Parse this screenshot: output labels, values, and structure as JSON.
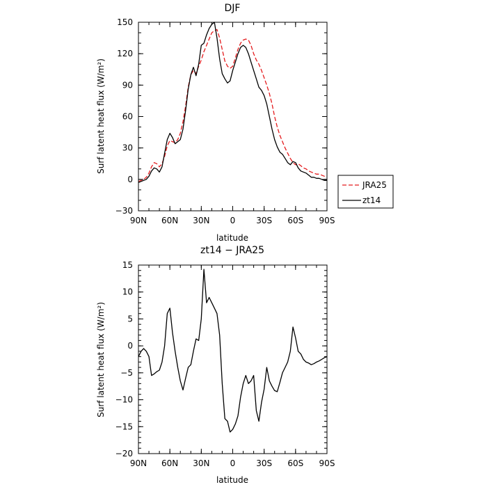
{
  "chart_data": [
    {
      "type": "line",
      "title": "DJF",
      "xlabel": "latitude",
      "ylabel": "Surf latent heat flux (W/m²)",
      "xlim": [
        90,
        -90
      ],
      "ylim": [
        -30,
        150
      ],
      "xticks": [
        90,
        60,
        30,
        0,
        -30,
        -60,
        -90
      ],
      "xtick_labels": [
        "90N",
        "60N",
        "30N",
        "0",
        "30S",
        "60S",
        "90S"
      ],
      "yticks": [
        -30,
        0,
        30,
        60,
        90,
        120,
        150
      ],
      "ytick_labels": [
        "−30",
        "0",
        "30",
        "60",
        "90",
        "120",
        "150"
      ],
      "legend_position": "right",
      "series": [
        {
          "name": "JRA25",
          "color": "#e41a1c",
          "dash": "dashed",
          "x": [
            90,
            87.5,
            85,
            82.5,
            80,
            77.5,
            75,
            72.5,
            70,
            67.5,
            65,
            62.5,
            60,
            57.5,
            55,
            52.5,
            50,
            47.5,
            45,
            42.5,
            40,
            37.5,
            35,
            32.5,
            30,
            27.5,
            25,
            22.5,
            20,
            17.5,
            15,
            12.5,
            10,
            7.5,
            5,
            2.5,
            0,
            -2.5,
            -5,
            -7.5,
            -10,
            -12.5,
            -15,
            -17.5,
            -20,
            -22.5,
            -25,
            -27.5,
            -30,
            -32.5,
            -35,
            -37.5,
            -40,
            -42.5,
            -45,
            -47.5,
            -50,
            -52.5,
            -55,
            -57.5,
            -60,
            -62.5,
            -65,
            -67.5,
            -70,
            -72.5,
            -75,
            -77.5,
            -80,
            -82.5,
            -85,
            -87.5,
            -90
          ],
          "values": [
            -2,
            -1,
            0,
            2,
            6,
            12,
            16,
            15,
            12,
            15,
            22,
            32,
            37,
            36,
            35,
            38,
            44,
            55,
            70,
            88,
            100,
            104,
            101,
            108,
            114,
            122,
            128,
            134,
            140,
            142,
            143,
            135,
            124,
            113,
            108,
            106,
            108,
            116,
            124,
            130,
            133,
            134,
            133,
            128,
            120,
            114,
            110,
            104,
            97,
            90,
            82,
            72,
            60,
            50,
            42,
            36,
            30,
            25,
            20,
            16,
            14,
            15,
            13,
            11,
            10,
            8,
            7,
            6,
            5,
            5,
            4,
            3,
            2
          ]
        },
        {
          "name": "zt14",
          "color": "#000000",
          "dash": "solid",
          "x": [
            90,
            87.5,
            85,
            82.5,
            80,
            77.5,
            75,
            72.5,
            70,
            67.5,
            65,
            62.5,
            60,
            57.5,
            55,
            52.5,
            50,
            47.5,
            45,
            42.5,
            40,
            37.5,
            35,
            32.5,
            30,
            27.5,
            25,
            22.5,
            20,
            17.5,
            15,
            12.5,
            10,
            7.5,
            5,
            2.5,
            0,
            -2.5,
            -5,
            -7.5,
            -10,
            -12.5,
            -15,
            -17.5,
            -20,
            -22.5,
            -25,
            -27.5,
            -30,
            -32.5,
            -35,
            -37.5,
            -40,
            -42.5,
            -45,
            -47.5,
            -50,
            -52.5,
            -55,
            -57.5,
            -60,
            -62.5,
            -65,
            -67.5,
            -70,
            -72.5,
            -75,
            -77.5,
            -80,
            -82.5,
            -85,
            -87.5,
            -90
          ],
          "values": [
            -3,
            -2,
            -1,
            0,
            3,
            8,
            11,
            10,
            7,
            12,
            25,
            38,
            44,
            40,
            34,
            36,
            38,
            48,
            66,
            86,
            100,
            107,
            99,
            110,
            128,
            130,
            138,
            144,
            148,
            150,
            135,
            115,
            101,
            96,
            92,
            94,
            104,
            112,
            120,
            126,
            128,
            126,
            120,
            112,
            104,
            96,
            88,
            85,
            80,
            72,
            60,
            48,
            38,
            31,
            26,
            24,
            20,
            16,
            14,
            17,
            16,
            11,
            8,
            7,
            6,
            4,
            2,
            2,
            1,
            1,
            0,
            -1,
            -1
          ]
        }
      ]
    },
    {
      "type": "line",
      "title": "zt14 − JRA25",
      "xlabel": "latitude",
      "ylabel": "Surf latent heat flux (W/m²)",
      "xlim": [
        90,
        -90
      ],
      "ylim": [
        -20,
        15
      ],
      "xticks": [
        90,
        60,
        30,
        0,
        -30,
        -60,
        -90
      ],
      "xtick_labels": [
        "90N",
        "60N",
        "30N",
        "0",
        "30S",
        "60S",
        "90S"
      ],
      "yticks": [
        -20,
        -15,
        -10,
        -5,
        0,
        5,
        10,
        15
      ],
      "ytick_labels": [
        "−20",
        "−15",
        "−10",
        "−5",
        "0",
        "5",
        "10",
        "15"
      ],
      "series": [
        {
          "color": "#000000",
          "dash": "solid",
          "x": [
            90,
            87.5,
            85,
            82.5,
            80,
            77.5,
            75,
            72.5,
            70,
            67.5,
            65,
            62.5,
            60,
            57.5,
            55,
            52.5,
            50,
            47.5,
            45,
            42.5,
            40,
            37.5,
            35,
            32.5,
            30,
            27.5,
            25,
            22.5,
            20,
            17.5,
            15,
            12.5,
            10,
            7.5,
            5,
            2.5,
            0,
            -2.5,
            -5,
            -7.5,
            -10,
            -12.5,
            -15,
            -17.5,
            -20,
            -22.5,
            -25,
            -27.5,
            -30,
            -32.5,
            -35,
            -37.5,
            -40,
            -42.5,
            -45,
            -47.5,
            -50,
            -52.5,
            -55,
            -57.5,
            -60,
            -62.5,
            -65,
            -67.5,
            -70,
            -72.5,
            -75,
            -77.5,
            -80,
            -82.5,
            -85,
            -87.5,
            -90
          ],
          "values": [
            -2,
            -1,
            -0.5,
            -1,
            -2,
            -5.5,
            -5.2,
            -4.8,
            -4.5,
            -3,
            0,
            6,
            7,
            2.5,
            -1,
            -4,
            -6.5,
            -8.2,
            -6,
            -4,
            -3.5,
            -1,
            1.3,
            1,
            5,
            14.2,
            8,
            9,
            8,
            7,
            6,
            2,
            -7,
            -13.5,
            -14,
            -16,
            -15.5,
            -14.5,
            -13,
            -9.5,
            -7,
            -5.5,
            -7,
            -6.5,
            -5.5,
            -12,
            -14,
            -10.5,
            -8,
            -4,
            -6.5,
            -7.5,
            -8.3,
            -8.5,
            -6.8,
            -5,
            -4,
            -3,
            -1,
            3.5,
            1.5,
            -1,
            -1.5,
            -2.5,
            -3,
            -3.2,
            -3.5,
            -3.3,
            -3,
            -2.8,
            -2.5,
            -2.2,
            -2
          ]
        }
      ]
    }
  ]
}
